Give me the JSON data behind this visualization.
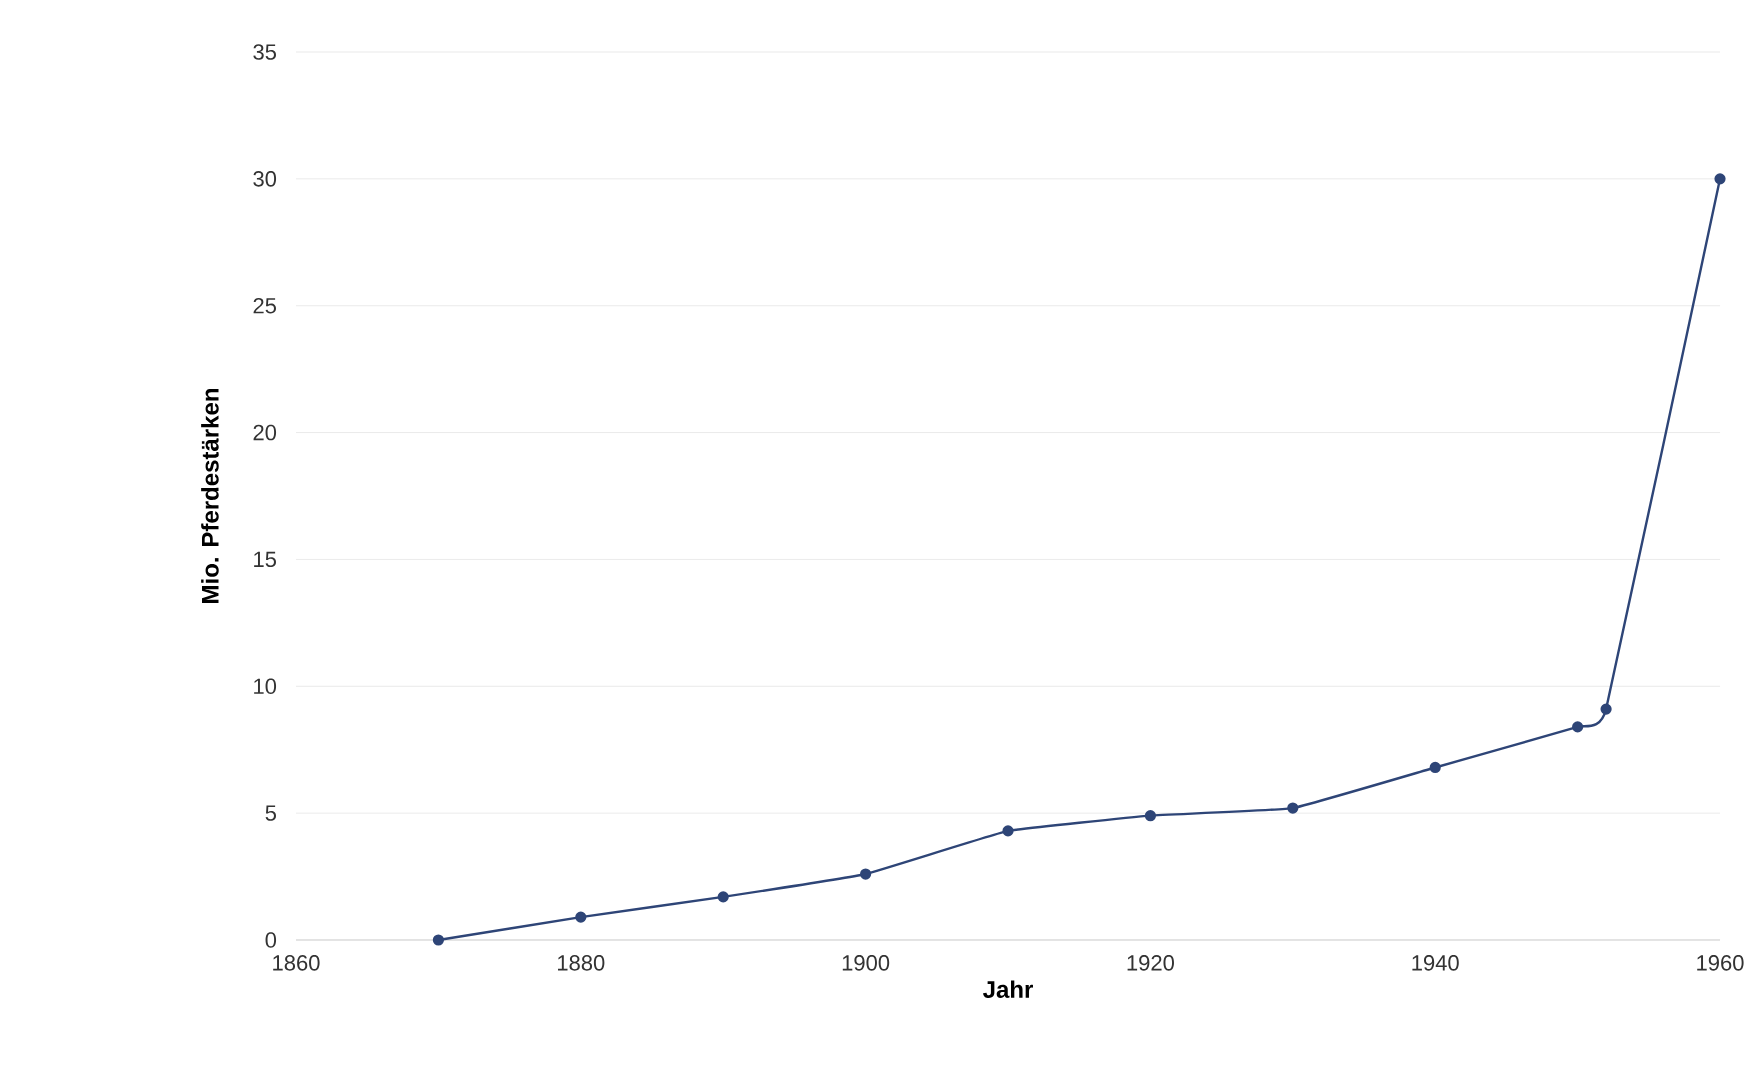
{
  "chart_data": {
    "type": "line",
    "xlabel": "Jahr",
    "ylabel": "Mio. Pferdestärken",
    "x": [
      1870,
      1880,
      1890,
      1900,
      1910,
      1920,
      1930,
      1940,
      1950,
      1952,
      1960
    ],
    "series": [
      {
        "color": "#2e4577",
        "values": [
          0,
          0.9,
          1.7,
          2.6,
          4.3,
          4.9,
          5.2,
          6.8,
          8.4,
          9.1,
          30
        ]
      }
    ],
    "xlim": [
      1860,
      1960
    ],
    "xticks": [
      1860,
      1880,
      1900,
      1920,
      1940,
      1960
    ],
    "ylim": [
      0,
      35
    ],
    "yticks": [
      0,
      5,
      10,
      15,
      20,
      25,
      30,
      35
    ],
    "grid": "y",
    "marker": "circle",
    "line_style": "solid"
  }
}
